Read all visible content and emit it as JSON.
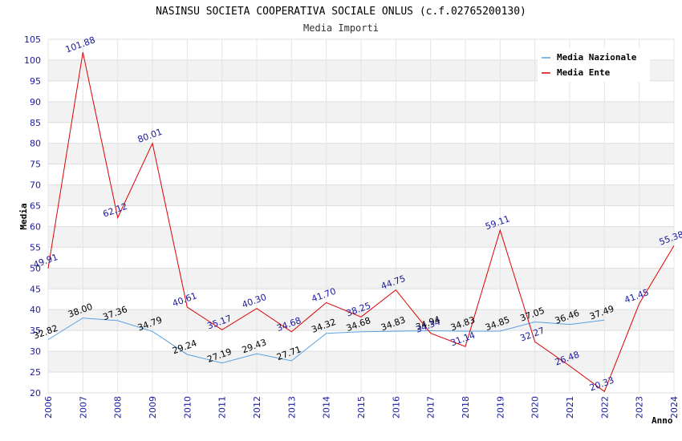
{
  "chart_data": {
    "type": "line",
    "title": "NASINSU SOCIETA COOPERATIVA SOCIALE ONLUS (c.f.02765200130)",
    "subtitle": "Media Importi",
    "xlabel": "Anno",
    "ylabel": "Media",
    "ylim": [
      20,
      105
    ],
    "yticks": [
      20,
      25,
      30,
      35,
      40,
      45,
      50,
      55,
      60,
      65,
      70,
      75,
      80,
      85,
      90,
      95,
      100,
      105
    ],
    "x": [
      "2006",
      "2007",
      "2008",
      "2009",
      "2010",
      "2011",
      "2012",
      "2013",
      "2014",
      "2015",
      "2016",
      "2017",
      "2018",
      "2019",
      "2020",
      "2021",
      "2022",
      "2023",
      "2024"
    ],
    "grid": true,
    "legend_position": "top-right",
    "series": [
      {
        "name": "Media Nazionale",
        "color": "#5aa0e0",
        "values": [
          32.82,
          38.0,
          37.36,
          34.79,
          29.24,
          27.19,
          29.43,
          27.71,
          34.32,
          34.68,
          34.83,
          34.94,
          34.83,
          34.85,
          37.05,
          36.46,
          37.49,
          null,
          null
        ],
        "labels": [
          "32.82",
          "38.00",
          "37.36",
          "34.79",
          "29.24",
          "27.19",
          "29.43",
          "27.71",
          "34.32",
          "34.68",
          "34.83",
          "34.94",
          "34.83",
          "34.85",
          "37.05",
          "36.46",
          "37.49",
          "",
          ""
        ]
      },
      {
        "name": "Media Ente",
        "color": "#dd0000",
        "values": [
          49.91,
          101.88,
          62.12,
          80.01,
          40.61,
          35.17,
          40.3,
          34.68,
          41.7,
          38.25,
          44.75,
          34.34,
          31.14,
          59.11,
          32.27,
          26.48,
          20.33,
          41.45,
          55.38
        ],
        "labels": [
          "49.91",
          "101.88",
          "62.12",
          "80.01",
          "40.61",
          "35.17",
          "40.30",
          "34.68",
          "41.70",
          "38.25",
          "44.75",
          "34.34",
          "31.14",
          "59.11",
          "32.27",
          "26.48",
          "20.33",
          "41.45",
          "55.38"
        ]
      }
    ]
  }
}
